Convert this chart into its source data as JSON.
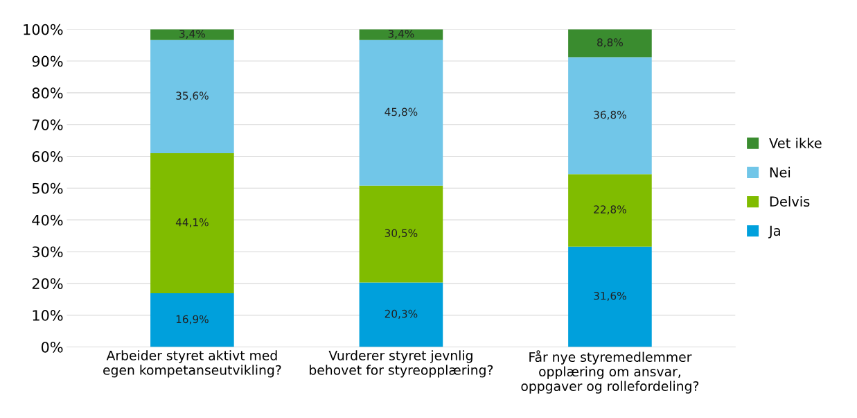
{
  "chart_data": {
    "type": "bar",
    "stacked": true,
    "categories": [
      "Arbeider styret aktivt med\negen kompetanseutvikling?",
      "Vurderer styret jevnlig\nbehovet for styreopplæring?",
      "Får nye styremedlemmer\nopplæring om ansvar,\noppgaver og rollefordeling?"
    ],
    "series": [
      {
        "name": "Ja",
        "color": "#00a0dc",
        "values": [
          16.9,
          20.3,
          31.6
        ],
        "value_labels": [
          "16,9%",
          "20,3%",
          "31,6%"
        ]
      },
      {
        "name": "Delvis",
        "color": "#80bc00",
        "values": [
          44.1,
          30.5,
          22.8
        ],
        "value_labels": [
          "44,1%",
          "30,5%",
          "22,8%"
        ]
      },
      {
        "name": "Nei",
        "color": "#71c6e8",
        "values": [
          35.6,
          45.8,
          36.8
        ],
        "value_labels": [
          "35,6%",
          "45,8%",
          "36,8%"
        ]
      },
      {
        "name": "Vet ikke",
        "color": "#3a8c2f",
        "values": [
          3.4,
          3.4,
          8.8
        ],
        "value_labels": [
          "3,4%",
          "3,4%",
          "8,8%"
        ]
      }
    ],
    "ylim": [
      0,
      100
    ],
    "yticks": [
      {
        "value": 0,
        "label": "0%"
      },
      {
        "value": 10,
        "label": "10%"
      },
      {
        "value": 20,
        "label": "20%"
      },
      {
        "value": 30,
        "label": "30%"
      },
      {
        "value": 40,
        "label": "40%"
      },
      {
        "value": 50,
        "label": "50%"
      },
      {
        "value": 60,
        "label": "60%"
      },
      {
        "value": 70,
        "label": "70%"
      },
      {
        "value": 80,
        "label": "80%"
      },
      {
        "value": 90,
        "label": "90%"
      },
      {
        "value": 100,
        "label": "100%"
      }
    ],
    "grid": "y",
    "legend": "right"
  }
}
